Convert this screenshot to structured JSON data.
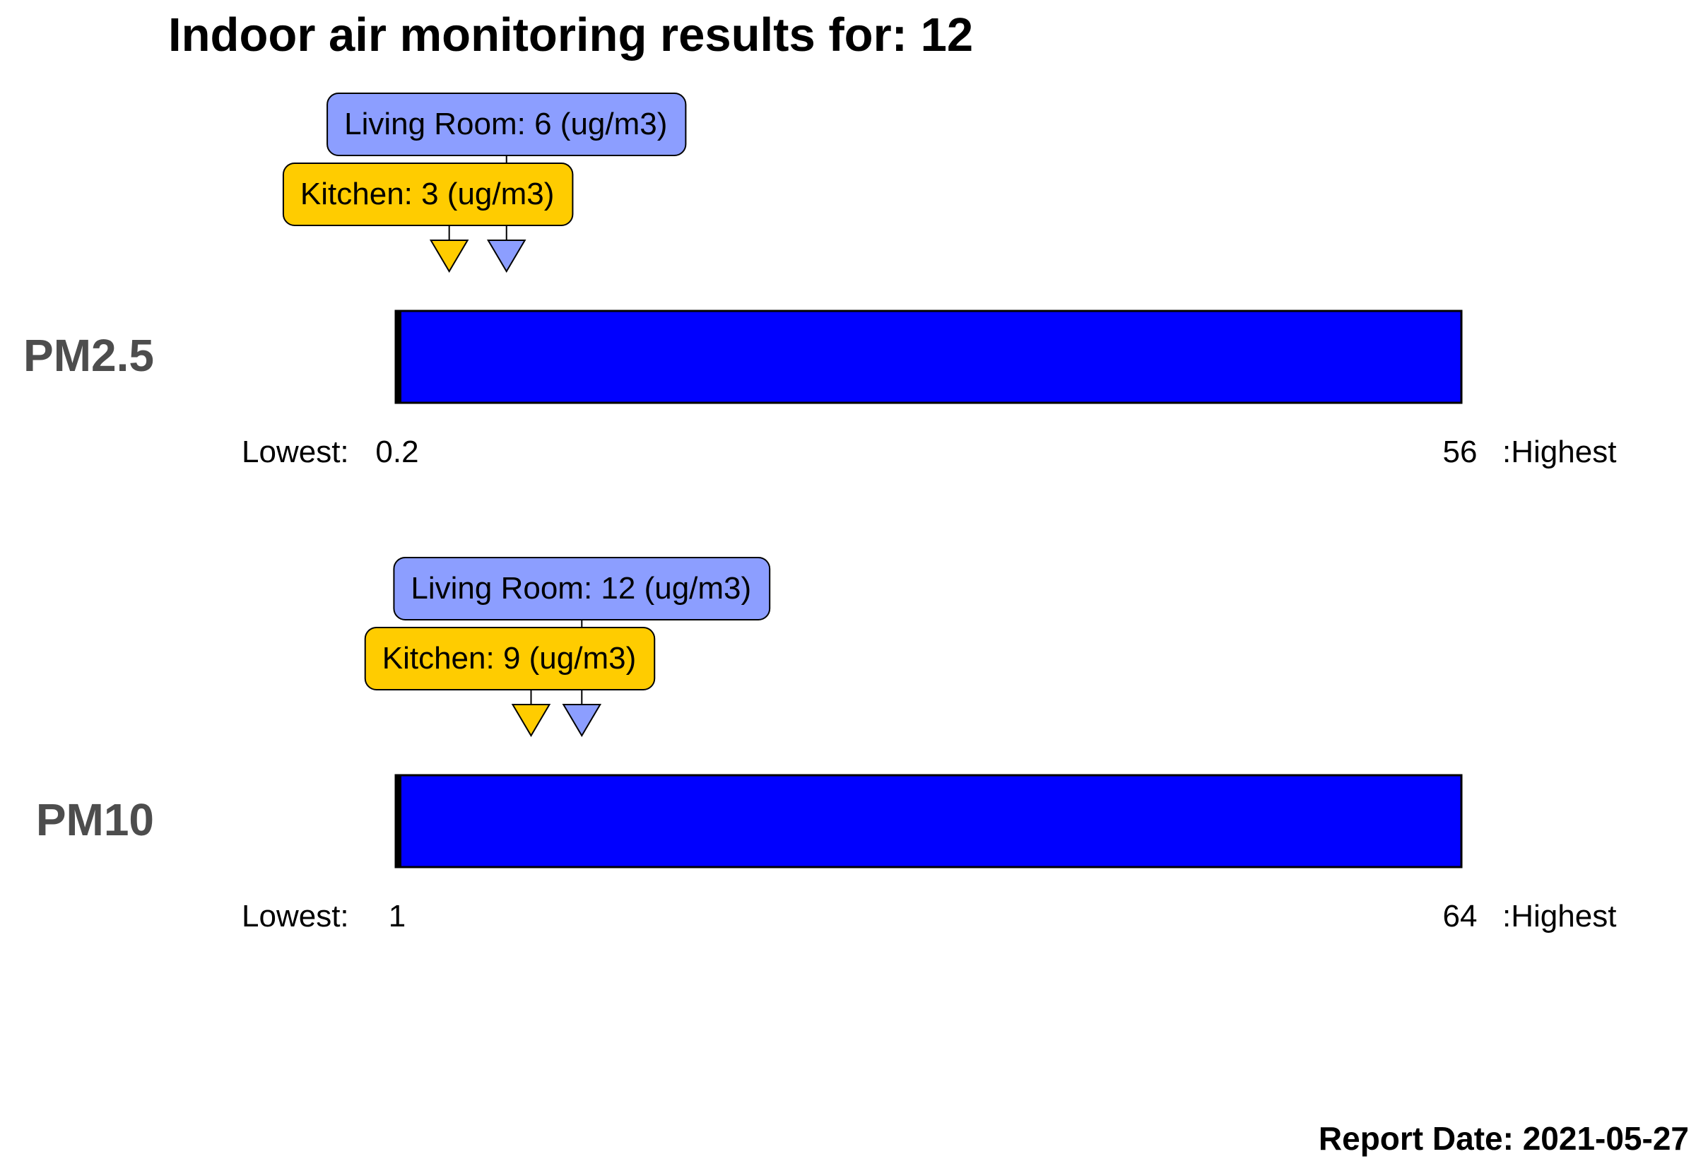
{
  "title": "Indoor air monitoring results for: 12",
  "report_date": "Report Date: 2021-05-27",
  "scale_lowest_prefix": "Lowest:",
  "scale_highest_suffix": ":Highest",
  "chart_data": [
    {
      "type": "bar",
      "pollutant": "PM2.5",
      "lowest": 0.2,
      "highest": 56,
      "lowest_label": "0.2",
      "highest_label": "56",
      "bar_color": "#0000ff",
      "markers": [
        {
          "room": "Living Room",
          "value": 6,
          "label": "Living Room: 6 (ug/m3)",
          "color": "#8c9eff"
        },
        {
          "room": "Kitchen",
          "value": 3,
          "label": "Kitchen: 3 (ug/m3)",
          "color": "#ffcc00"
        }
      ]
    },
    {
      "type": "bar",
      "pollutant": "PM10",
      "lowest": 1,
      "highest": 64,
      "lowest_label": "1",
      "highest_label": "64",
      "bar_color": "#0000ff",
      "markers": [
        {
          "room": "Living Room",
          "value": 12,
          "label": "Living Room: 12 (ug/m3)",
          "color": "#8c9eff"
        },
        {
          "room": "Kitchen",
          "value": 9,
          "label": "Kitchen: 9 (ug/m3)",
          "color": "#ffcc00"
        }
      ]
    }
  ]
}
